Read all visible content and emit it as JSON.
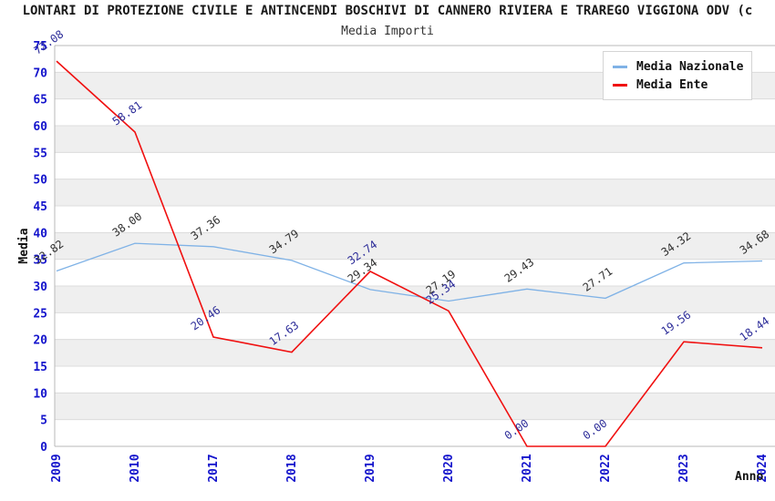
{
  "title": "LONTARI DI PROTEZIONE CIVILE E ANTINCENDI BOSCHIVI DI CANNERO RIVIERA E TRAREGO VIGGIONA ODV (c",
  "subtitle": "Media Importi",
  "chart_data": {
    "type": "line",
    "x": [
      2009,
      2010,
      2017,
      2018,
      2019,
      2020,
      2021,
      2022,
      2023,
      2024
    ],
    "xlabel": "Anno",
    "ylabel": "Media",
    "ylim": [
      0,
      75
    ],
    "ytick_step": 5,
    "yticks": [
      0,
      5,
      10,
      15,
      20,
      25,
      30,
      35,
      40,
      45,
      50,
      55,
      60,
      65,
      70,
      75
    ],
    "grid": "horizontal gridlines with alternating shaded bands",
    "legend_position": "top-right",
    "point_labels_visible": true,
    "series": [
      {
        "name": "Media Nazionale",
        "color": "#7fb2e6",
        "label_color": "#303030",
        "values": [
          32.82,
          38.0,
          37.36,
          34.79,
          29.34,
          27.19,
          29.43,
          27.71,
          34.32,
          34.68
        ]
      },
      {
        "name": "Media Ente",
        "color": "#f01010",
        "label_color": "#2d2d99",
        "values": [
          72.08,
          58.81,
          20.46,
          17.63,
          32.74,
          25.34,
          0.0,
          0.0,
          19.56,
          18.44
        ]
      }
    ]
  },
  "colors": {
    "tick_label": "#1414cc",
    "band_fill": "#efefef",
    "grid_line": "#dcdcdc",
    "axis_border": "#b8b8b8",
    "background": "#ffffff"
  }
}
